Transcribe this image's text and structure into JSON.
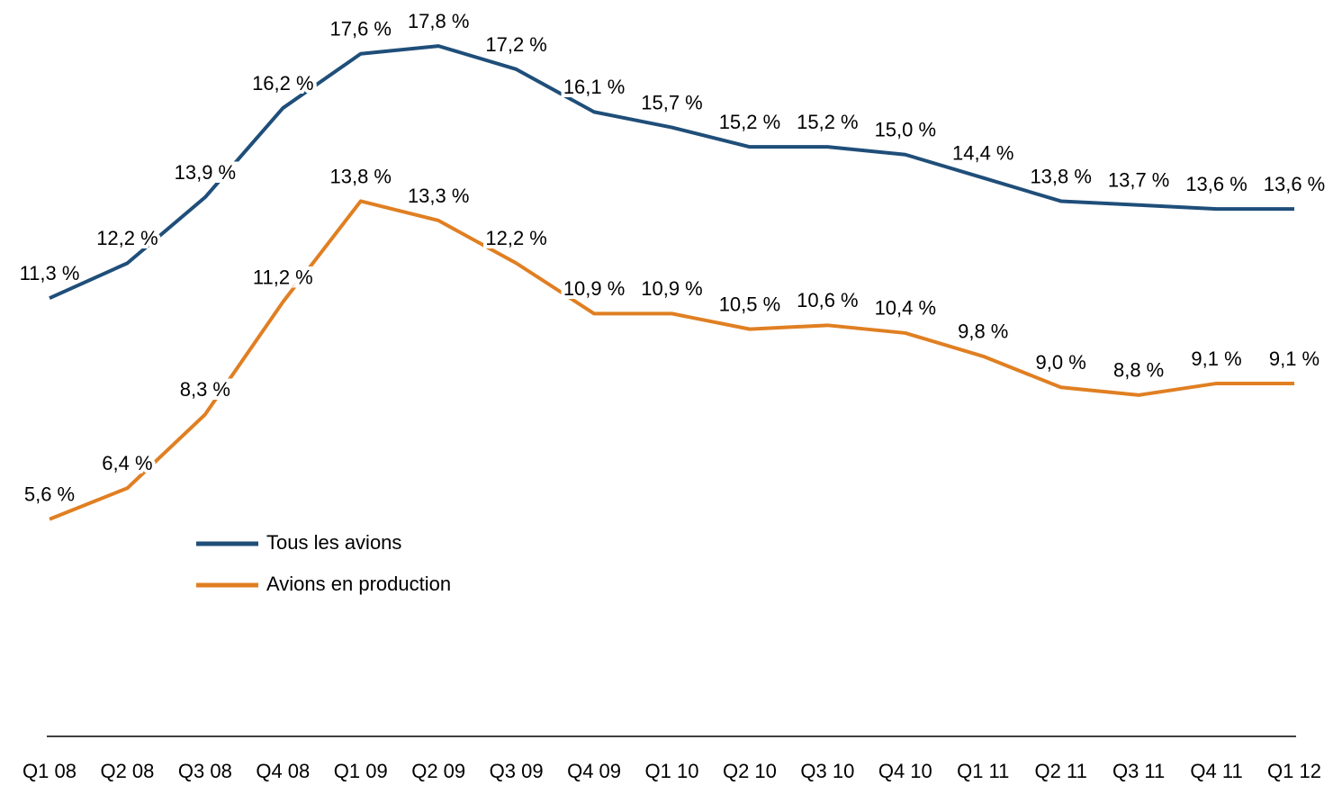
{
  "chart_data": {
    "type": "line",
    "categories": [
      "Q1 08",
      "Q2 08",
      "Q3 08",
      "Q4 08",
      "Q1 09",
      "Q2 09",
      "Q3 09",
      "Q4 09",
      "Q1 10",
      "Q2 10",
      "Q3 10",
      "Q4 10",
      "Q1 11",
      "Q2 11",
      "Q3 11",
      "Q4 11",
      "Q1 12"
    ],
    "ylim": [
      0,
      18
    ],
    "legend": "center-left",
    "series": [
      {
        "name": "Tous les avions",
        "color": "#1f4e79",
        "values": [
          11.3,
          12.2,
          13.9,
          16.2,
          17.6,
          17.8,
          17.2,
          16.1,
          15.7,
          15.2,
          15.2,
          15.0,
          14.4,
          13.8,
          13.7,
          13.6,
          13.6
        ],
        "value_labels": [
          "11,3 %",
          "12,2 %",
          "13,9 %",
          "16,2 %",
          "17,6 %",
          "17,8 %",
          "17,2 %",
          "16,1 %",
          "15,7 %",
          "15,2 %",
          "15,2 %",
          "15,0 %",
          "14,4 %",
          "13,8 %",
          "13,7 %",
          "13,6 %",
          "13,6 %"
        ]
      },
      {
        "name": "Avions en production",
        "color": "#e07f22",
        "values": [
          5.6,
          6.4,
          8.3,
          11.2,
          13.8,
          13.3,
          12.2,
          10.9,
          10.9,
          10.5,
          10.6,
          10.4,
          9.8,
          9.0,
          8.8,
          9.1,
          9.1
        ],
        "value_labels": [
          "5,6 %",
          "6,4 %",
          "8,3 %",
          "11,2 %",
          "13,8 %",
          "13,3 %",
          "12,2 %",
          "10,9 %",
          "10,9 %",
          "10,5 %",
          "10,6 %",
          "10,4 %",
          "9,8 %",
          "9,0 %",
          "8,8 %",
          "9,1 %",
          "9,1 %"
        ]
      }
    ]
  }
}
